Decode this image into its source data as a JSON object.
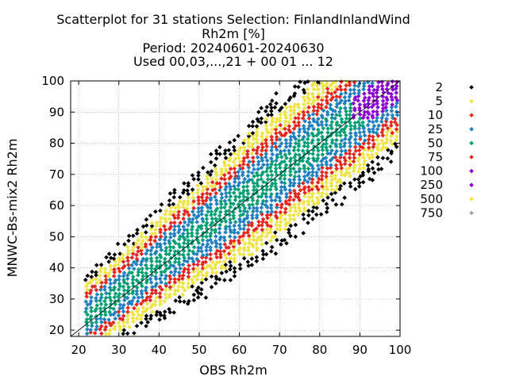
{
  "chart_data": {
    "type": "scatter",
    "title_lines": [
      "Scatterplot for   31 stations Selection: FinlandInlandWind",
      "Rh2m [%]",
      "Period: 20240601-20240630",
      "Used 00,03,...,21 + 00 01 ... 12"
    ],
    "xlabel": "OBS Rh2m",
    "ylabel": "MNWC-Bs-mix2 Rh2m",
    "xlim": [
      18,
      100
    ],
    "ylim": [
      18,
      100
    ],
    "x_ticks": [
      20,
      30,
      40,
      50,
      60,
      70,
      80,
      90,
      100
    ],
    "y_ticks": [
      20,
      30,
      40,
      50,
      60,
      70,
      80,
      90,
      100
    ],
    "grid": true,
    "reference_line": "y = x",
    "legend_position": "right",
    "density_classes": [
      {
        "label": "2",
        "color": "#000000"
      },
      {
        "label": "5",
        "color": "#f0e442"
      },
      {
        "label": "10",
        "color": "#e5261e"
      },
      {
        "label": "25",
        "color": "#1f7fc0"
      },
      {
        "label": "50",
        "color": "#009e73"
      },
      {
        "label": "75",
        "color": "#e5261e"
      },
      {
        "label": "100",
        "color": "#8a00d4"
      },
      {
        "label": "250",
        "color": "#9400d3"
      },
      {
        "label": "500",
        "color": "#f0e442"
      },
      {
        "label": "750",
        "color": "#a0a0a0"
      }
    ],
    "band_model": {
      "core_class": "50",
      "bands": [
        {
          "class": "50",
          "half_width": 5
        },
        {
          "class": "25",
          "half_width": 10
        },
        {
          "class": "75",
          "half_width": 14
        },
        {
          "class": "5",
          "half_width": 19
        },
        {
          "class": "2",
          "half_width": 25
        }
      ],
      "upper_right_class": "100"
    }
  }
}
